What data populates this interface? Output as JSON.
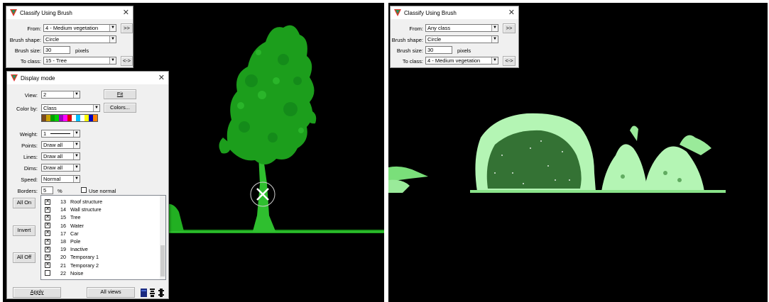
{
  "left_panel": {
    "brush": {
      "title": "Classify Using Brush",
      "from_label": "From:",
      "from_value": "4 - Medium vegetation",
      "shape_label": "Brush shape:",
      "shape_value": "Circle",
      "size_label": "Brush size:",
      "size_value": "30",
      "size_unit": "pixels",
      "to_label": "To class:",
      "to_value": "15 - Tree",
      "forward_btn": ">>",
      "swap_btn": "<->"
    },
    "display": {
      "title": "Display mode",
      "view_label": "View:",
      "view_value": "2",
      "fit_btn": "Fit",
      "color_by_label": "Color by:",
      "color_by_value": "Class",
      "colors_btn": "Colors...",
      "weight_label": "Weight:",
      "weight_value": "1",
      "points_label": "Points:",
      "points_value": "Draw all",
      "lines_label": "Lines:",
      "lines_value": "Draw all",
      "dims_label": "Dims:",
      "dims_value": "Draw all",
      "speed_label": "Speed:",
      "speed_value": "Normal",
      "borders_label": "Borders:",
      "borders_value": "5",
      "borders_unit": "%",
      "use_normal_label": "Use normal",
      "all_on_btn": "All On",
      "invert_btn": "Invert",
      "all_off_btn": "All Off",
      "apply_btn": "Apply",
      "all_views_btn": "All views",
      "swatch_colors": [
        "#7a4a1e",
        "#c8a000",
        "#00a000",
        "#00d000",
        "#9a00c0",
        "#ff00ff",
        "#e00000",
        "#ffffff",
        "#00c0ff",
        "#ffffff",
        "#ffff00",
        "#0000c0",
        "#ff8000"
      ],
      "classes": [
        {
          "num": "13",
          "name": "Roof structure",
          "checked": true
        },
        {
          "num": "14",
          "name": "Wall structure",
          "checked": true
        },
        {
          "num": "15",
          "name": "Tree",
          "checked": true
        },
        {
          "num": "16",
          "name": "Water",
          "checked": true
        },
        {
          "num": "17",
          "name": "Car",
          "checked": true
        },
        {
          "num": "18",
          "name": "Pole",
          "checked": true
        },
        {
          "num": "19",
          "name": "Inactive",
          "checked": true
        },
        {
          "num": "20",
          "name": "Temporary 1",
          "checked": true
        },
        {
          "num": "21",
          "name": "Temporary 2",
          "checked": true
        },
        {
          "num": "22",
          "name": "Noise",
          "checked": false
        }
      ]
    }
  },
  "right_panel": {
    "brush": {
      "title": "Classify Using Brush",
      "from_label": "From:",
      "from_value": "Any class",
      "shape_label": "Brush shape:",
      "shape_value": "Circle",
      "size_label": "Brush size:",
      "size_value": "30",
      "size_unit": "pixels",
      "to_label": "To class:",
      "to_value": "4 - Medium vegetation",
      "forward_btn": ">>",
      "swap_btn": "<->"
    }
  },
  "colors": {
    "tree_green": "#1aa51a",
    "medium_veg": "#b4f5b4",
    "background": "#000000"
  }
}
